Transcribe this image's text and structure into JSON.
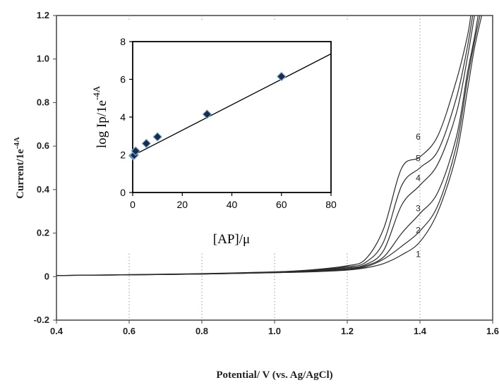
{
  "chart_data": [
    {
      "id": "main",
      "type": "line",
      "xlabel": "Potential/ V (vs. Ag/AgCl)",
      "ylabel": "Current/1e",
      "ylabel_sup": "-4A",
      "xlim": [
        0.4,
        1.6
      ],
      "ylim": [
        -0.2,
        1.2
      ],
      "x_ticks": [
        "0.4",
        "0.6",
        "0.8",
        "1.0",
        "1.2",
        "1.4",
        "1.6"
      ],
      "x_tick_values": [
        0.4,
        0.6,
        0.8,
        1.0,
        1.2,
        1.4,
        1.6
      ],
      "y_ticks": [
        "-0.2",
        "0",
        "0.2",
        "0.4",
        "0.6",
        "0.8",
        "1.0",
        "1.2"
      ],
      "y_tick_values": [
        -0.2,
        0,
        0.2,
        0.4,
        0.6,
        0.8,
        1.0,
        1.2
      ],
      "grid": "vertical dotted",
      "series": [
        {
          "name": "1",
          "label_at": [
            1.395,
            0.09
          ],
          "x": [
            0.4,
            0.6,
            0.8,
            1.0,
            1.1,
            1.2,
            1.25,
            1.3,
            1.35,
            1.4,
            1.45,
            1.5,
            1.53,
            1.55,
            1.57
          ],
          "y": [
            0.005,
            0.008,
            0.012,
            0.018,
            0.022,
            0.03,
            0.04,
            0.06,
            0.1,
            0.16,
            0.3,
            0.56,
            0.85,
            1.05,
            1.2
          ]
        },
        {
          "name": "2",
          "label_at": [
            1.395,
            0.2
          ],
          "x": [
            0.4,
            0.6,
            0.8,
            1.0,
            1.1,
            1.2,
            1.25,
            1.3,
            1.35,
            1.4,
            1.45,
            1.5,
            1.53,
            1.55,
            1.565
          ],
          "y": [
            0.005,
            0.008,
            0.012,
            0.018,
            0.023,
            0.033,
            0.045,
            0.08,
            0.14,
            0.21,
            0.33,
            0.6,
            0.9,
            1.08,
            1.2
          ]
        },
        {
          "name": "3",
          "label_at": [
            1.395,
            0.3
          ],
          "x": [
            0.4,
            0.6,
            0.8,
            1.0,
            1.1,
            1.2,
            1.25,
            1.3,
            1.35,
            1.4,
            1.45,
            1.5,
            1.53,
            1.55,
            1.56
          ],
          "y": [
            0.005,
            0.008,
            0.012,
            0.019,
            0.025,
            0.036,
            0.05,
            0.09,
            0.2,
            0.29,
            0.39,
            0.64,
            0.93,
            1.1,
            1.2
          ]
        },
        {
          "name": "4",
          "label_at": [
            1.395,
            0.44
          ],
          "x": [
            0.4,
            0.6,
            0.8,
            1.0,
            1.1,
            1.2,
            1.25,
            1.3,
            1.35,
            1.4,
            1.45,
            1.5,
            1.53,
            1.55
          ],
          "y": [
            0.005,
            0.008,
            0.013,
            0.02,
            0.027,
            0.04,
            0.055,
            0.12,
            0.33,
            0.42,
            0.52,
            0.75,
            1.0,
            1.2
          ]
        },
        {
          "name": "5",
          "label_at": [
            1.395,
            0.53
          ],
          "x": [
            0.4,
            0.6,
            0.8,
            1.0,
            1.1,
            1.2,
            1.25,
            1.3,
            1.35,
            1.4,
            1.45,
            1.5,
            1.53,
            1.545
          ],
          "y": [
            0.005,
            0.009,
            0.013,
            0.021,
            0.029,
            0.045,
            0.065,
            0.16,
            0.42,
            0.5,
            0.58,
            0.82,
            1.05,
            1.2
          ]
        },
        {
          "name": "6",
          "label_at": [
            1.395,
            0.63
          ],
          "x": [
            0.4,
            0.6,
            0.8,
            1.0,
            1.1,
            1.2,
            1.25,
            1.3,
            1.35,
            1.4,
            1.45,
            1.5,
            1.53,
            1.54
          ],
          "y": [
            0.005,
            0.009,
            0.014,
            0.022,
            0.031,
            0.05,
            0.08,
            0.22,
            0.5,
            0.55,
            0.65,
            0.9,
            1.1,
            1.2
          ]
        }
      ]
    },
    {
      "id": "inset",
      "type": "scatter",
      "xlabel": "[AP]/μ",
      "ylabel": "log Ip/1e",
      "ylabel_sup": "-4A",
      "xlim": [
        0,
        80
      ],
      "ylim": [
        0,
        8
      ],
      "x_ticks": [
        "0",
        "20",
        "40",
        "60",
        "80"
      ],
      "x_tick_values": [
        0,
        20,
        40,
        60,
        80
      ],
      "y_ticks": [
        "0",
        "2",
        "4",
        "6",
        "8"
      ],
      "y_tick_values": [
        0,
        2,
        4,
        6,
        8
      ],
      "points": {
        "x": [
          0.2,
          0.6,
          1.2,
          5.5,
          10,
          30,
          60
        ],
        "y": [
          1.95,
          1.98,
          2.2,
          2.6,
          2.95,
          4.15,
          6.15
        ]
      },
      "fit_line": {
        "x": [
          0,
          80
        ],
        "y": [
          1.95,
          7.35
        ]
      },
      "colors": {
        "marker": "#1c2b4a",
        "marker_edge": "#7fb3d8"
      }
    }
  ]
}
